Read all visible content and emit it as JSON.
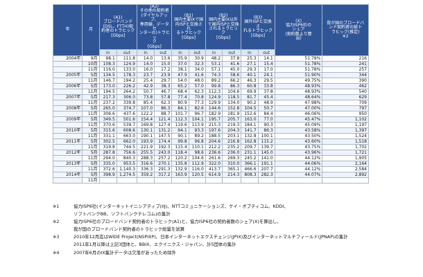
{
  "table": {
    "headers": {
      "year": "年",
      "month": "月",
      "a1": "(A1)\nブロードバンド\n(DSL、FTTH)契\n約者のトラヒック\n[Gbps]",
      "a2": "(A2)\nその他の契約者\n(ダイヤルアップ、\n専用線、データセ\nンターの)トラヒッ\nク\n[Gbps]",
      "b1": "(B1)\n国内主要IXで国\n内ISPと交換され\nるトラヒック\n[Gbps]",
      "b2": "(B2)\n国内主要IX以外\nで国内ISPと交換\nされるトラヒック\n[Gbps]",
      "b3": "(B3)\n国外ISPと交換さ\nれるトラヒック\n[Gbps]",
      "x": "(X)\n協力ISP6社の\nシェア\n(契約数より算\n出)",
      "total": "我が国のブロードバ\nンド契約者の総ト\nラヒック(推定)\n※2",
      "in": "in",
      "out": "out"
    },
    "rows": [
      {
        "year": "2004年",
        "month": "9月",
        "a1_in": "98.1",
        "a1_out": "111.8",
        "a2_in": "14.0",
        "a2_out": "13.6",
        "b1_in": "35.9",
        "b1_out": "30.9",
        "b2_in": "48.2",
        "b2_out": "37.8",
        "b3_in": "25.3",
        "b3_out": "14.1",
        "x": "51.78%",
        "total": "216"
      },
      {
        "year": "",
        "month": "10月",
        "a1_in": "108.3",
        "a1_out": "124.9",
        "a2_in": "14.0",
        "a2_out": "15.0",
        "b1_in": "37.0",
        "b1_out": "32.3",
        "b2_in": "53.1",
        "b2_out": "41.6",
        "b3_in": "27.1",
        "b3_out": "15.4",
        "x": "51.78%",
        "total": "241"
      },
      {
        "year": "",
        "month": "11月",
        "a1_in": "116.0",
        "a1_out": "133.0",
        "a2_in": "16.0",
        "a2_out": "17.2",
        "b1_in": "38.1",
        "b1_out": "34.0",
        "b2_in": "57.1",
        "b2_out": "45.0",
        "b3_in": "29.3",
        "b3_out": "17.0",
        "x": "51.78%",
        "total": "257"
      },
      {
        "year": "2005年",
        "month": "5月",
        "a1_in": "134.5",
        "a1_out": "178.3",
        "a2_in": "23.7",
        "a2_out": "23.9",
        "b1_in": "47.9",
        "b1_out": "41.6",
        "b2_in": "74.3",
        "b2_out": "58.6",
        "b3_in": "40.1",
        "b3_out": "24.1",
        "x": "51.90%",
        "total": "344"
      },
      {
        "year": "",
        "month": "11月",
        "a1_in": "146.7",
        "a1_out": "194.2",
        "a2_in": "25.4",
        "a2_out": "29.7",
        "b1_in": "54.0",
        "b1_out": "48.0",
        "b2_in": "89.2",
        "b2_out": "66.2",
        "b3_in": "46.3",
        "b3_out": "29.5",
        "x": "49.75%",
        "total": "390"
      },
      {
        "year": "2006年",
        "month": "5月",
        "a1_in": "173.0",
        "a1_out": "226.2",
        "a2_in": "42.9",
        "a2_out": "38.3",
        "b1_in": "65.2",
        "b1_out": "57.0",
        "b2_in": "99.8",
        "b2_out": "86.3",
        "b3_in": "60.8",
        "b3_out": "33.8",
        "x": "48.93%",
        "total": "462"
      },
      {
        "year": "",
        "month": "11月",
        "a1_in": "194.5",
        "a1_out": "264.2",
        "a2_in": "50.7",
        "a2_out": "46.7",
        "b1_in": "68.4",
        "b1_out": "62.3",
        "b2_in": "112.3",
        "b2_out": "104.6",
        "b3_in": "69.9",
        "b3_out": "37.8",
        "x": "48.93%",
        "total": "540"
      },
      {
        "year": "2007年",
        "month": "5月",
        "a1_in": "217.3",
        "a1_out": "306.0",
        "a2_in": "73.8",
        "a2_out": "57.8",
        "b1_in": "77.4",
        "b1_out": "70.8",
        "b2_in": "124.9",
        "b2_out": "118.5",
        "b3_in": "81.7",
        "b3_out": "45.4",
        "x": "48.64%",
        "total": "629"
      },
      {
        "year": "",
        "month": "11月",
        "a1_in": "237.2",
        "a1_out": "339.8",
        "a2_in": "85.4",
        "a2_out": "62.3",
        "b1_in": "80.9",
        "b1_out": "77.3",
        "b2_in": "129.9",
        "b2_out": "134.0",
        "b3_in": "90.2",
        "b3_out": "48.9",
        "x": "47.98%",
        "total": "709"
      },
      {
        "year": "2008年",
        "month": "5月",
        "a1_in": "265.0",
        "a1_out": "374.7",
        "a2_in": "107.0",
        "a2_out": "86.3",
        "b1_in": "84.1",
        "b1_out": "82.6",
        "b2_in": "144.6",
        "b2_out": "152.8",
        "b3_in": "104.5",
        "b3_out": "50.7",
        "x": "47.00%",
        "total": "797"
      },
      {
        "year": "",
        "month": "11月",
        "a1_in": "306.6",
        "a1_out": "437.6",
        "a2_in": "122.2",
        "a2_out": "88.7",
        "b1_in": "101.7",
        "b1_out": "96.7",
        "b2_in": "182.9",
        "b2_out": "181.9",
        "b3_in": "152.6",
        "b3_out": "84.4",
        "x": "46.06%",
        "total": "950"
      },
      {
        "year": "2009年",
        "month": "5月",
        "a1_in": "349.5",
        "a1_out": "501.6",
        "a2_in": "154.4",
        "a2_out": "121.4",
        "b1_in": "112.3",
        "b1_out": "104.1",
        "b2_in": "195.7",
        "b2_out": "205.7",
        "b3_in": "163.0",
        "b3_out": "77.0",
        "x": "45.47%",
        "total": "1,102"
      },
      {
        "year": "",
        "month": "11月",
        "a1_in": "370.6",
        "a1_out": "539.7",
        "a2_in": "169.8",
        "a2_out": "127.4",
        "b1_in": "119.6",
        "b1_out": "113.9",
        "b2_in": "215.3",
        "b2_out": "219.3",
        "b3_in": "184.1",
        "b3_out": "90.3",
        "x": "45.09%",
        "total": "1,197"
      },
      {
        "year": "2010年",
        "month": "5月",
        "a1_in": "315.6",
        "a1_out": "608.6",
        "a2_in": "130.1",
        "a2_out": "131.2",
        "b1_in": "94.1",
        "b1_out": "93.3",
        "b2_in": "197.6",
        "b2_out": "204.3",
        "b3_in": "141.7",
        "b3_out": "86.3",
        "x": "43.58%",
        "total": "1,397"
      },
      {
        "year": "",
        "month": "11月",
        "a1_in": "331.1",
        "a1_out": "663.0",
        "a2_in": "190.1",
        "a2_out": "147.5",
        "b1_in": "90.1",
        "b1_out": "89.2",
        "b2_in": "188.5",
        "b2_out": "203.1",
        "b3_in": "132.8",
        "b3_out": "100.1",
        "x": "43.50%",
        "total": "1,524"
      },
      {
        "year": "2011年",
        "month": "5月",
        "a1_in": "302.5",
        "a1_out": "662.0",
        "a2_in": "193.9",
        "a2_out": "174.4",
        "b1_in": "99.8",
        "b1_out": "96.8",
        "b2_in": "204.6",
        "b2_out": "216.8",
        "b3_in": "162.8",
        "b3_out": "115.2",
        "x": "43.60%",
        "total": "1,518"
      },
      {
        "year": "",
        "month": "11月",
        "a1_in": "319.8",
        "a1_out": "744.5",
        "a2_in": "221.9",
        "a2_out": "192.3",
        "b1_in": "115.4",
        "b1_out": "110.1",
        "b2_in": "212.2",
        "b2_out": "235.2",
        "b3_in": "209.7",
        "b3_out": "139.7",
        "x": "43.75%",
        "total": "1,702"
      },
      {
        "year": "2012年",
        "month": "5月",
        "a1_in": "287.8",
        "a1_out": "756.6",
        "a2_in": "255.5",
        "a2_out": "243.0",
        "b1_in": "118.4",
        "b1_out": "98.6",
        "b2_in": "236.6",
        "b2_out": "236.0",
        "b3_in": "231.1",
        "b3_out": "145.0",
        "x": "43.96%",
        "total": "1,721"
      },
      {
        "year": "",
        "month": "11月",
        "a1_in": "294.0",
        "a1_out": "840.3",
        "a2_in": "288.3",
        "a2_out": "257.2",
        "b1_in": "120.2",
        "b1_out": "104.6",
        "b2_in": "261.6",
        "b2_out": "269.3",
        "b3_in": "245.2",
        "b3_out": "141.0",
        "x": "44.12%",
        "total": "1,905"
      },
      {
        "year": "2013年",
        "month": "5月",
        "a1_in": "335.0",
        "a1_out": "953.5",
        "a2_in": "316.6",
        "a2_out": "270.1",
        "b1_in": "135.8",
        "b1_out": "112.9",
        "b2_in": "322.0",
        "b2_out": "310.0",
        "b3_in": "366.1",
        "b3_out": "191.1",
        "x": "44.06%",
        "total": "2,164"
      },
      {
        "year": "",
        "month": "11月",
        "a1_in": "372.6",
        "a1_out": "1,140.3",
        "a2_in": "336.3",
        "a2_out": "291.3",
        "b1_in": "132.9",
        "b1_out": "116.0",
        "b2_in": "413.7",
        "b2_out": "365.1",
        "b3_in": "466.6",
        "b3_out": "207.7",
        "x": "44.12%",
        "total": "2,584"
      },
      {
        "year": "2014年",
        "month": "5月",
        "a1_in": "398.9",
        "a1_out": "1,274.5",
        "a2_in": "359.2",
        "a2_out": "317.2",
        "b1_in": "163.9",
        "b1_out": "120.5",
        "b2_in": "614.9",
        "b2_out": "214.3",
        "b3_in": "808.3",
        "b3_out": "282.3",
        "x": "44.07%",
        "total": "2,892"
      },
      {
        "year": "",
        "month": "11月",
        "a1_in": "",
        "a1_out": "",
        "a2_in": "",
        "a2_out": "",
        "b1_in": "",
        "b1_out": "",
        "b2_in": "",
        "b2_out": "",
        "b3_in": "",
        "b3_out": "",
        "x": "",
        "total": ""
      }
    ]
  },
  "notes": [
    {
      "mark": "※1",
      "lines": [
        "協力ISP6社(インターネットイニシアティブ(IIJ)、NTTコミュニケーションズ、ケイ・オプティコム、KDDI、",
        "ソフトバンクBB、ソフトバンクテレコム)の集計"
      ]
    },
    {
      "mark": "※2",
      "lines": [
        "協力ISP6社のブロードバンド契約者のトラヒック(A1)と、協力ISP6社の契約者数のシェア(X)を算出し、",
        "我が国のブロードバンド契約者のトラヒック総量を試算"
      ]
    },
    {
      "mark": "※3",
      "lines": [
        "2010年12月迄はWIDE Project(NSPIXP)、日本インターネットエクスチェンジ(JPIX)及びインターネットマルチフィールド(JPNAP)の集計",
        "2011年1月以降は上記3団体と、BBIX、エクイニクス・ジャパン、計5団体の集計"
      ]
    },
    {
      "mark": "※4",
      "lines": [
        "2007年6月のIX集計データは欠落があったため除外"
      ]
    }
  ]
}
